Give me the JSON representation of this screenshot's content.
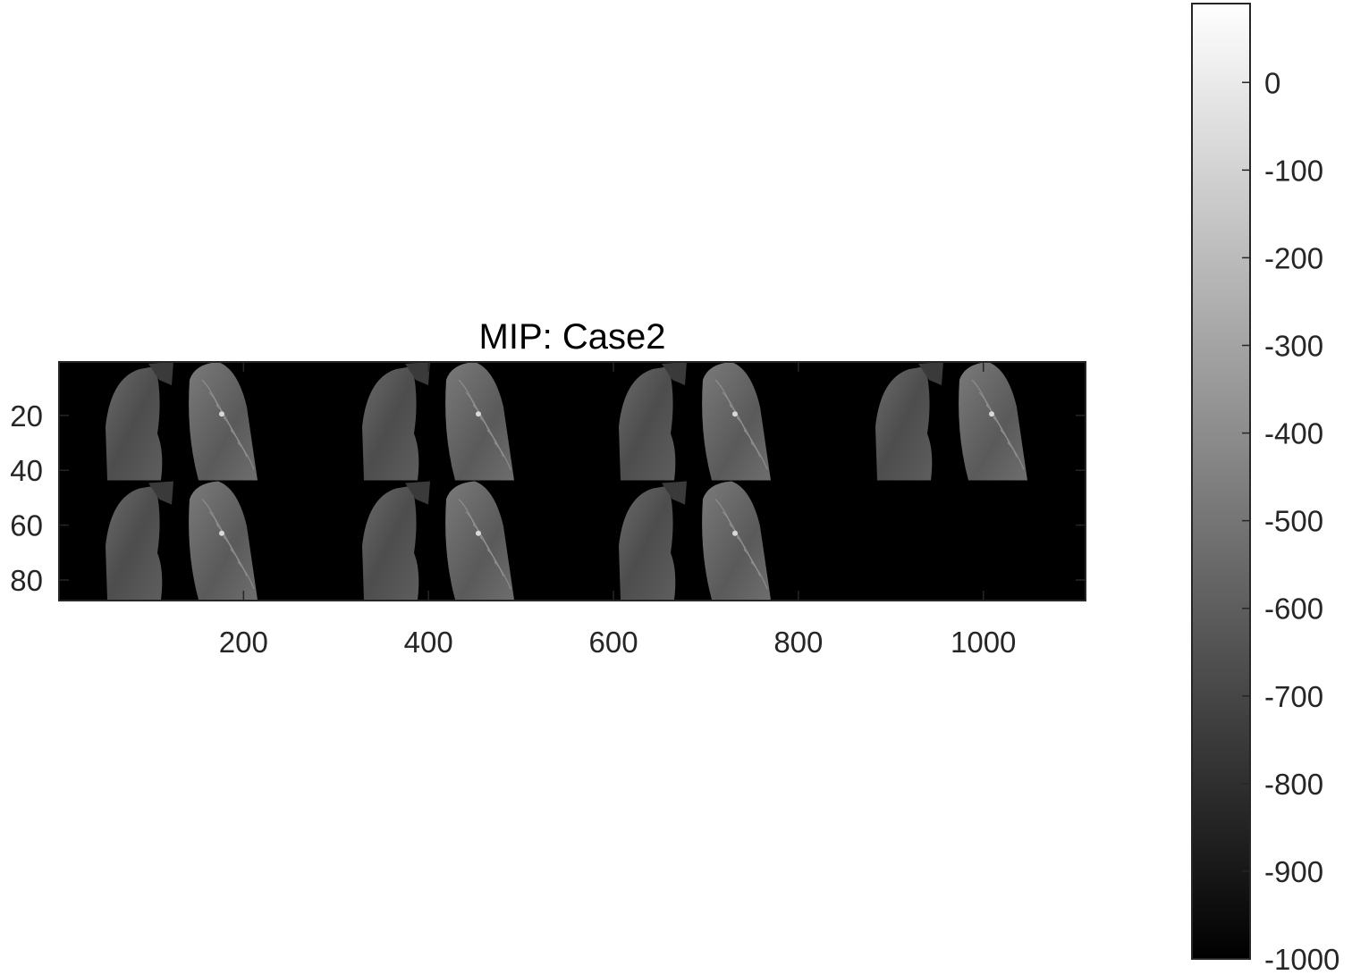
{
  "chart_data": {
    "type": "heatmap",
    "title": "MIP: Case2",
    "xlabel": "",
    "ylabel": "",
    "xlim": [
      0.5,
      1110.5
    ],
    "ylim": [
      0.5,
      87.5
    ],
    "x_ticks": [
      200,
      400,
      600,
      800,
      1000
    ],
    "x_tick_labels": [
      "200",
      "400",
      "600",
      "800",
      "1000"
    ],
    "y_ticks": [
      20,
      40,
      60,
      80
    ],
    "y_tick_labels": [
      "20",
      "40",
      "60",
      "80"
    ],
    "y_direction": "reverse",
    "grid": false,
    "colormap": "gray",
    "colorbar": {
      "limits": [
        -1000,
        90
      ],
      "ticks": [
        0,
        -100,
        -200,
        -300,
        -400,
        -500,
        -600,
        -700,
        -800,
        -900,
        -1000
      ],
      "tick_labels": [
        "0",
        "-100",
        "-200",
        "-300",
        "-400",
        "-500",
        "-600",
        "-700",
        "-800",
        "-900",
        "-1000"
      ],
      "location": "right"
    },
    "montage": {
      "rows": 2,
      "columns": 4,
      "tile_width": 277.5,
      "tile_height": 43.5,
      "slices_shown": 7,
      "background_value": -1000
    }
  },
  "colors": {
    "background": "#ffffff",
    "axes_edge": "#262626",
    "image_background": "#000000",
    "tick_label": "#262626",
    "title": "#000000"
  }
}
